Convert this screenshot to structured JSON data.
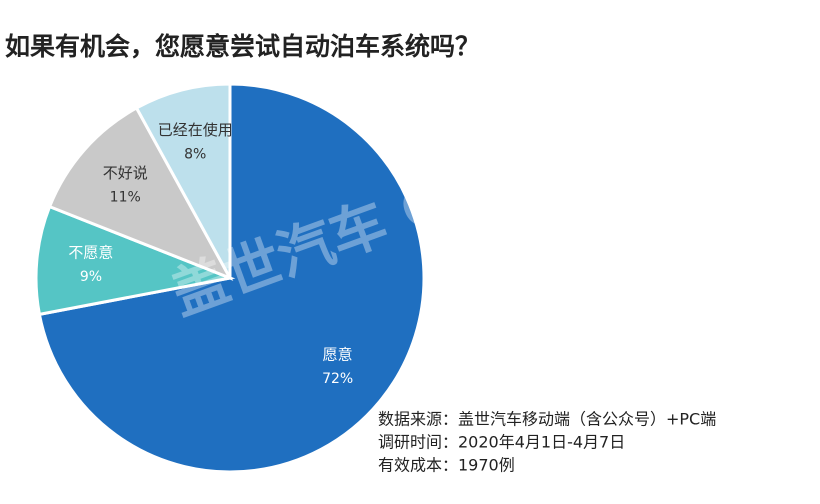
{
  "chart_data": {
    "type": "pie",
    "title": "如果有机会，您愿意尝试自动泊车系统吗？",
    "categories": [
      "愿意",
      "不愿意",
      "不好说",
      "已经在使用"
    ],
    "values": [
      72,
      9,
      11,
      8
    ],
    "value_labels": [
      "72%",
      "9%",
      "11%",
      "8%"
    ],
    "colors": [
      "#1f6fc0",
      "#55c5c5",
      "#c9c9c9",
      "#bde0ec"
    ],
    "watermark": "盖世汽车 Gasgoo",
    "notes": [
      "数据来源：盖世汽车移动端（含公众号）+PC端",
      "调研时间：2020年4月1日-4月7日",
      "有效成本：1970例"
    ]
  }
}
